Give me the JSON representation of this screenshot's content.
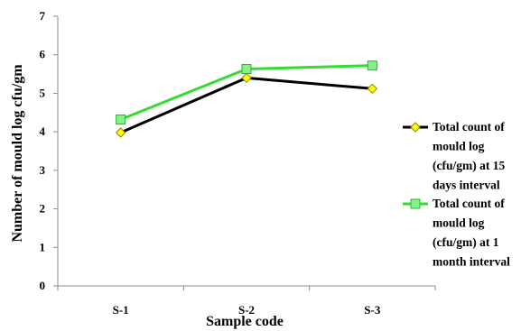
{
  "chart_data": {
    "type": "line",
    "title": "",
    "xlabel": "Sample code",
    "ylabel": "Number of mould log cfu/gm",
    "categories": [
      "S-1",
      "S-2",
      "S-3"
    ],
    "ylim": [
      0,
      7
    ],
    "yticks": [
      "0",
      "1",
      "2",
      "3",
      "4",
      "5",
      "6",
      "7"
    ],
    "grid": false,
    "legend_position": "right",
    "series": [
      {
        "name_lines": [
          "Total count of",
          "mould log",
          "(cfu/gm) at 15",
          "days interval"
        ],
        "values": [
          3.98,
          5.4,
          5.12
        ],
        "line_color": "#000000",
        "marker": "diamond",
        "marker_fill": "#ffff00",
        "marker_stroke": "#8a8a00"
      },
      {
        "name_lines": [
          "Total count of",
          "mould log",
          "(cfu/gm) at 1",
          "month interval"
        ],
        "values": [
          4.32,
          5.63,
          5.72
        ],
        "line_color": "#33dd33",
        "marker": "square",
        "marker_fill": "#88f088",
        "marker_stroke": "#22bb22"
      }
    ]
  }
}
